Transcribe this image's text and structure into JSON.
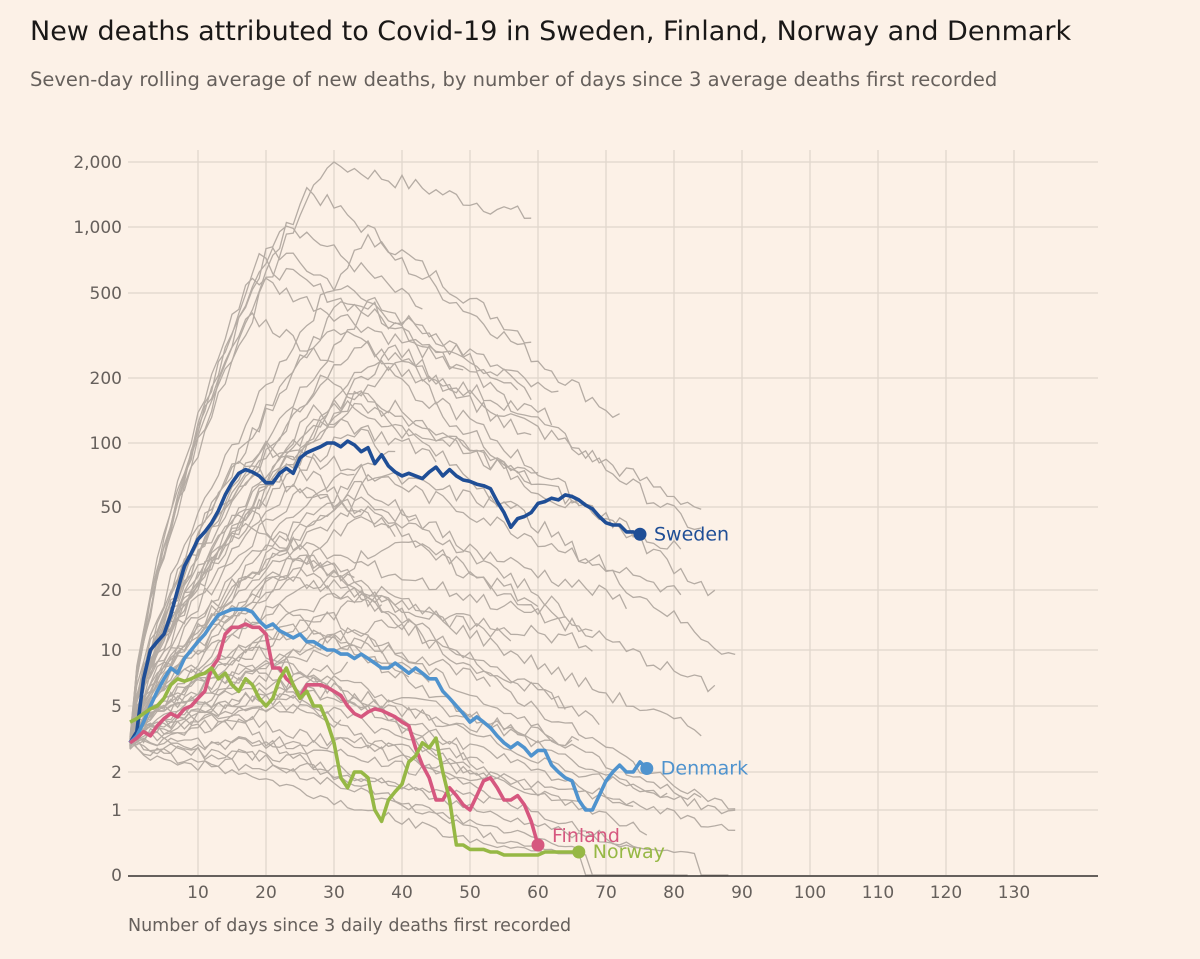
{
  "title": "New deaths attributed to Covid-19 in Sweden, Finland, Norway and Denmark",
  "subtitle": "Seven-day rolling average of new deaths, by number of days since 3 average deaths first recorded",
  "chart_data": {
    "type": "line",
    "title": "New deaths attributed to Covid-19 in Sweden, Finland, Norway and Denmark",
    "subtitle": "Seven-day rolling average of new deaths, by number of days since 3 average deaths first recorded",
    "xlabel": "Number of days since 3 daily deaths first recorded",
    "ylabel": "",
    "y_scale": "log",
    "y_ticks": [
      {
        "value": 0,
        "label": "0"
      },
      {
        "value": 1,
        "label": "1"
      },
      {
        "value": 2,
        "label": "2"
      },
      {
        "value": 5,
        "label": "5"
      },
      {
        "value": 10,
        "label": "10"
      },
      {
        "value": 20,
        "label": "20"
      },
      {
        "value": 50,
        "label": "50"
      },
      {
        "value": 100,
        "label": "100"
      },
      {
        "value": 200,
        "label": "200"
      },
      {
        "value": 500,
        "label": "500"
      },
      {
        "value": 1000,
        "label": "1,000"
      },
      {
        "value": 2000,
        "label": "2,000"
      }
    ],
    "x_ticks": [
      10,
      20,
      30,
      40,
      50,
      60,
      70,
      80,
      90,
      100,
      110,
      120,
      130
    ],
    "xlim": [
      0,
      140
    ],
    "grid": true,
    "series": [
      {
        "name": "Sweden",
        "color": "#1f4e96",
        "x": [
          0,
          1,
          2,
          3,
          4,
          5,
          6,
          7,
          8,
          9,
          10,
          11,
          12,
          13,
          14,
          15,
          16,
          17,
          18,
          19,
          20,
          21,
          22,
          23,
          24,
          25,
          26,
          27,
          28,
          29,
          30,
          31,
          32,
          33,
          34,
          35,
          36,
          37,
          38,
          39,
          40,
          41,
          42,
          43,
          44,
          45,
          46,
          47,
          48,
          49,
          50,
          51,
          52,
          53,
          54,
          55,
          56,
          57,
          58,
          59,
          60,
          61,
          62,
          63,
          64,
          65,
          66,
          67,
          68,
          69,
          70,
          71,
          72,
          73,
          74,
          75
        ],
        "y": [
          3,
          3.5,
          7,
          10,
          11,
          12,
          15,
          20,
          26,
          30,
          35,
          38,
          42,
          48,
          57,
          65,
          72,
          75,
          73,
          70,
          65,
          65,
          72,
          76,
          72,
          85,
          90,
          93,
          96,
          100,
          100,
          96,
          102,
          98,
          91,
          95,
          80,
          88,
          78,
          73,
          70,
          72,
          70,
          68,
          73,
          77,
          70,
          75,
          70,
          67,
          66,
          64,
          63,
          61,
          53,
          47,
          40,
          44,
          45,
          47,
          52,
          53,
          55,
          54,
          57,
          56,
          54,
          51,
          49,
          45,
          42,
          41,
          41,
          38,
          38,
          37
        ],
        "label": "Sweden"
      },
      {
        "name": "Denmark",
        "color": "#4f93ce",
        "x": [
          0,
          1,
          2,
          3,
          4,
          5,
          6,
          7,
          8,
          9,
          10,
          11,
          12,
          13,
          14,
          15,
          16,
          17,
          18,
          19,
          20,
          21,
          22,
          23,
          24,
          25,
          26,
          27,
          28,
          29,
          30,
          31,
          32,
          33,
          34,
          35,
          36,
          37,
          38,
          39,
          40,
          41,
          42,
          43,
          44,
          45,
          46,
          47,
          48,
          49,
          50,
          51,
          52,
          53,
          54,
          55,
          56,
          57,
          58,
          59,
          60,
          61,
          62,
          63,
          64,
          65,
          66,
          67,
          68,
          69,
          70,
          71,
          72,
          73,
          74,
          75,
          76
        ],
        "y": [
          3,
          3.3,
          4,
          5,
          6,
          7,
          8,
          7.5,
          9,
          10,
          11,
          12,
          13.5,
          15,
          15.5,
          16,
          16,
          16,
          15.5,
          14,
          13,
          13.5,
          12.5,
          12,
          11.5,
          12,
          11,
          11,
          10.5,
          10,
          10,
          9.5,
          9.5,
          9,
          9.5,
          9,
          8.5,
          8,
          8,
          8.5,
          8,
          7.5,
          8,
          7.5,
          7,
          7,
          6,
          5.5,
          5,
          4.5,
          4,
          4.3,
          4,
          3.7,
          3.3,
          3,
          2.8,
          3,
          2.8,
          2.5,
          2.7,
          2.7,
          2.2,
          2,
          1.8,
          1.7,
          1.2,
          1,
          1,
          1.3,
          1.7,
          2,
          2.2,
          2,
          2,
          2.3,
          2.1
        ],
        "label": "Denmark"
      },
      {
        "name": "Finland",
        "color": "#d6577f",
        "x": [
          0,
          1,
          2,
          3,
          4,
          5,
          6,
          7,
          8,
          9,
          10,
          11,
          12,
          13,
          14,
          15,
          16,
          17,
          18,
          19,
          20,
          21,
          22,
          23,
          24,
          25,
          26,
          27,
          28,
          29,
          30,
          31,
          32,
          33,
          34,
          35,
          36,
          37,
          38,
          39,
          40,
          41,
          42,
          43,
          44,
          45,
          46,
          47,
          48,
          49,
          50,
          51,
          52,
          53,
          54,
          55,
          56,
          57,
          58,
          59,
          60
        ],
        "y": [
          3,
          3.2,
          3.5,
          3.3,
          3.8,
          4.2,
          4.5,
          4.3,
          4.8,
          5,
          5.5,
          6,
          8,
          9,
          12,
          13,
          13,
          13.5,
          13,
          13,
          12,
          8,
          8,
          7,
          6.5,
          5.5,
          6.5,
          6.5,
          6.5,
          6.3,
          6,
          5.7,
          5,
          4.5,
          4.3,
          4.6,
          4.8,
          4.7,
          4.5,
          4.3,
          4,
          3.8,
          2.8,
          2.2,
          1.8,
          1.2,
          1.2,
          1.5,
          1.3,
          1.1,
          1,
          1.3,
          1.7,
          1.8,
          1.5,
          1.2,
          1.2,
          1.3,
          1.1,
          0.8,
          0.5
        ],
        "label": "Finland"
      },
      {
        "name": "Norway",
        "color": "#96b845",
        "x": [
          0,
          1,
          2,
          3,
          4,
          5,
          6,
          7,
          8,
          9,
          10,
          11,
          12,
          13,
          14,
          15,
          16,
          17,
          18,
          19,
          20,
          21,
          22,
          23,
          24,
          25,
          26,
          27,
          28,
          29,
          30,
          31,
          32,
          33,
          34,
          35,
          36,
          37,
          38,
          39,
          40,
          41,
          42,
          43,
          44,
          45,
          46,
          47,
          48,
          49,
          50,
          51,
          52,
          53,
          54,
          55,
          56,
          57,
          58,
          59,
          60,
          61,
          62,
          63,
          64,
          65,
          66
        ],
        "y": [
          4,
          4.2,
          4.5,
          4.8,
          5,
          5.5,
          6.5,
          7,
          6.8,
          7,
          7.3,
          7.5,
          8,
          7,
          7.5,
          6.5,
          6,
          7,
          6.5,
          5.5,
          5,
          5.5,
          7,
          8,
          6.5,
          5.5,
          6,
          5,
          5,
          4,
          3,
          1.8,
          1.5,
          2,
          2,
          1.8,
          1,
          0.8,
          1.2,
          1.4,
          1.6,
          2.3,
          2.5,
          3,
          2.8,
          3.2,
          2,
          1.2,
          0.5,
          0.5,
          0.4,
          0.4,
          0.4,
          0.35,
          0.35,
          0.3,
          0.3,
          0.3,
          0.3,
          0.3,
          0.3,
          0.35,
          0.35,
          0.35,
          0.35,
          0.35,
          0.35
        ],
        "label": "Norway"
      }
    ],
    "background_series_note": ""
  }
}
